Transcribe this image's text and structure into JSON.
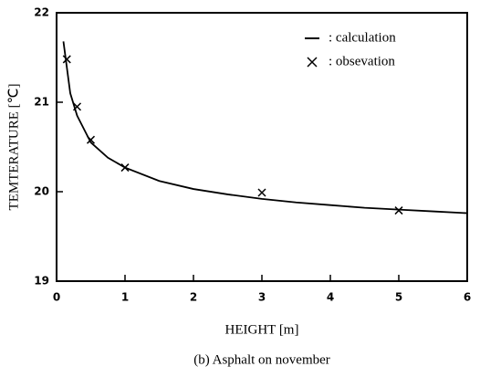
{
  "chart_data": {
    "type": "line",
    "caption": "(b)   Asphalt on november",
    "x_label": "HEIGHT [m]",
    "y_label": "TEMTERATURE [℃]",
    "xlim": [
      0,
      6
    ],
    "xticks": [
      0,
      1,
      2,
      3,
      4,
      5,
      6
    ],
    "ylim": [
      19,
      22
    ],
    "yticks": [
      19,
      20,
      21,
      22
    ],
    "legend": "upper right",
    "series": [
      {
        "name": ": calculation",
        "color": "#000000",
        "style": "line",
        "x": [
          0.1,
          0.2,
          0.3,
          0.5,
          0.75,
          1.0,
          1.5,
          2.0,
          2.5,
          3.0,
          3.5,
          4.0,
          4.5,
          5.0,
          5.5,
          6.0
        ],
        "values": [
          21.68,
          21.1,
          20.85,
          20.55,
          20.38,
          20.27,
          20.12,
          20.03,
          19.97,
          19.92,
          19.88,
          19.85,
          19.82,
          19.8,
          19.78,
          19.76
        ]
      },
      {
        "name": ": obsevation",
        "color": "#000000",
        "style": "markers",
        "x": [
          0.15,
          0.3,
          0.5,
          1.0,
          3.0,
          5.0
        ],
        "values": [
          21.48,
          20.95,
          20.58,
          20.27,
          19.99,
          19.79
        ]
      }
    ]
  }
}
